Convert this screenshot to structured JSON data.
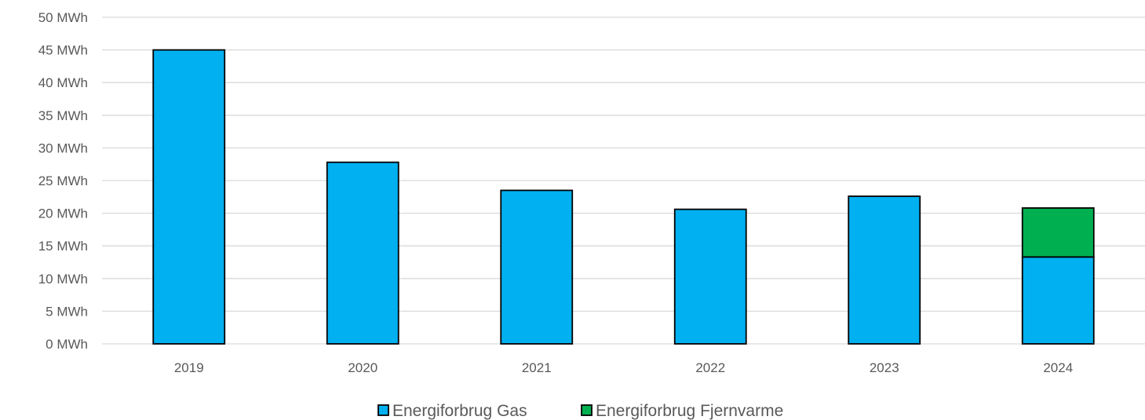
{
  "chart_data": {
    "type": "bar",
    "stacked": true,
    "categories": [
      "2019",
      "2020",
      "2021",
      "2022",
      "2023",
      "2024"
    ],
    "series": [
      {
        "name": "Energiforbrug Gas",
        "color": "#00b0f0",
        "values": [
          45,
          27.8,
          23.5,
          20.6,
          22.6,
          13.3
        ]
      },
      {
        "name": "Energiforbrug Fjernvarme",
        "color": "#00b050",
        "values": [
          0,
          0,
          0,
          0,
          0,
          7.5
        ]
      }
    ],
    "ylim": [
      0,
      50
    ],
    "y_ticks": [
      0,
      5,
      10,
      15,
      20,
      25,
      30,
      35,
      40,
      45,
      50
    ],
    "y_unit": "MWh",
    "title": "",
    "xlabel": "",
    "ylabel": "",
    "grid": true,
    "legend_position": "bottom"
  }
}
